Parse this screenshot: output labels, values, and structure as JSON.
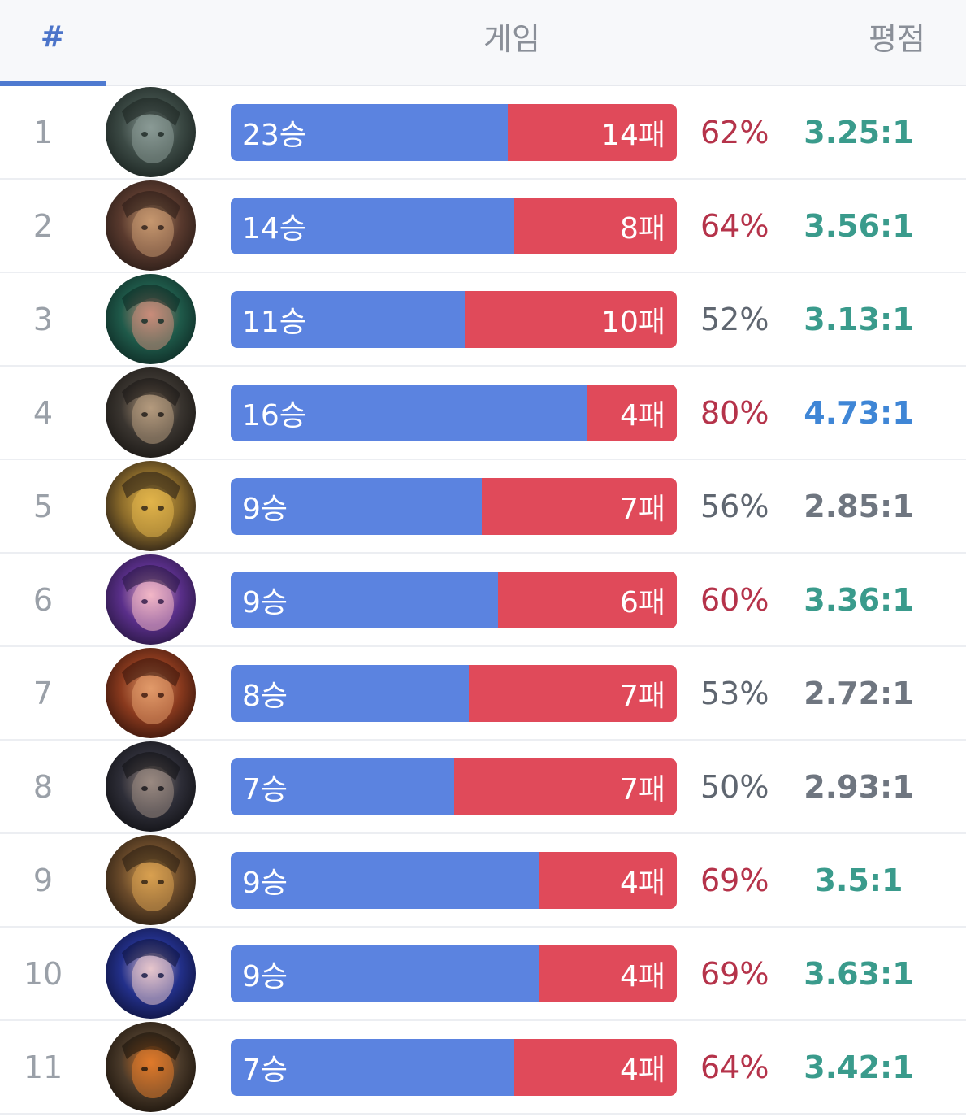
{
  "header": {
    "rank_label": "#",
    "game_label": "게임",
    "kda_label": "평점"
  },
  "colors": {
    "win_bar": "#5b83e0",
    "loss_bar": "#e04a5a",
    "winrate_high": "#b5334a",
    "winrate_normal": "#5f6670",
    "kda_green": "#3a9b8c",
    "kda_blue": "#3f86d6",
    "kda_gray": "#6f7680"
  },
  "rows": [
    {
      "rank": "1",
      "wins_label": "23승",
      "losses_label": "14패",
      "wins": 23,
      "losses": 14,
      "winrate": "62%",
      "winrate_tone": "high",
      "kda": "3.25:1",
      "kda_tone": "green",
      "avatar_icon": "champion-portrait-icon",
      "avatar_colors": [
        "#3c4a45",
        "#8a9a96",
        "#1c2522"
      ]
    },
    {
      "rank": "2",
      "wins_label": "14승",
      "losses_label": "8패",
      "wins": 14,
      "losses": 8,
      "winrate": "64%",
      "winrate_tone": "high",
      "kda": "3.56:1",
      "kda_tone": "green",
      "avatar_icon": "champion-portrait-icon",
      "avatar_colors": [
        "#5a3a2e",
        "#c6986f",
        "#2b1d18"
      ]
    },
    {
      "rank": "3",
      "wins_label": "11승",
      "losses_label": "10패",
      "wins": 11,
      "losses": 10,
      "winrate": "52%",
      "winrate_tone": "normal",
      "kda": "3.13:1",
      "kda_tone": "green",
      "avatar_icon": "champion-portrait-icon",
      "avatar_colors": [
        "#1f5a4a",
        "#c98c7a",
        "#0e2b25"
      ]
    },
    {
      "rank": "4",
      "wins_label": "16승",
      "losses_label": "4패",
      "wins": 16,
      "losses": 4,
      "winrate": "80%",
      "winrate_tone": "high",
      "kda": "4.73:1",
      "kda_tone": "blue",
      "avatar_icon": "champion-portrait-icon",
      "avatar_colors": [
        "#3a3530",
        "#b49a7e",
        "#1b1815"
      ]
    },
    {
      "rank": "5",
      "wins_label": "9승",
      "losses_label": "7패",
      "wins": 9,
      "losses": 7,
      "winrate": "56%",
      "winrate_tone": "normal",
      "kda": "2.85:1",
      "kda_tone": "gray",
      "avatar_icon": "champion-portrait-icon",
      "avatar_colors": [
        "#8a6a2a",
        "#e2b44a",
        "#2a2016"
      ]
    },
    {
      "rank": "6",
      "wins_label": "9승",
      "losses_label": "6패",
      "wins": 9,
      "losses": 6,
      "winrate": "60%",
      "winrate_tone": "high",
      "kda": "3.36:1",
      "kda_tone": "green",
      "avatar_icon": "champion-portrait-icon",
      "avatar_colors": [
        "#5a2f8a",
        "#f2b7c6",
        "#2a1744"
      ]
    },
    {
      "rank": "7",
      "wins_label": "8승",
      "losses_label": "7패",
      "wins": 8,
      "losses": 7,
      "winrate": "53%",
      "winrate_tone": "normal",
      "kda": "2.72:1",
      "kda_tone": "gray",
      "avatar_icon": "champion-portrait-icon",
      "avatar_colors": [
        "#8a3a1e",
        "#e29a6a",
        "#3a160c"
      ]
    },
    {
      "rank": "8",
      "wins_label": "7승",
      "losses_label": "7패",
      "wins": 7,
      "losses": 7,
      "winrate": "50%",
      "winrate_tone": "normal",
      "kda": "2.93:1",
      "kda_tone": "gray",
      "avatar_icon": "champion-portrait-icon",
      "avatar_colors": [
        "#2e2e38",
        "#9a8a82",
        "#121216"
      ]
    },
    {
      "rank": "9",
      "wins_label": "9승",
      "losses_label": "4패",
      "wins": 9,
      "losses": 4,
      "winrate": "69%",
      "winrate_tone": "high",
      "kda": "3.5:1",
      "kda_tone": "green",
      "avatar_icon": "champion-portrait-icon",
      "avatar_colors": [
        "#6a4a2a",
        "#d8a050",
        "#2a1e12"
      ]
    },
    {
      "rank": "10",
      "wins_label": "9승",
      "losses_label": "4패",
      "wins": 9,
      "losses": 4,
      "winrate": "69%",
      "winrate_tone": "high",
      "kda": "3.63:1",
      "kda_tone": "green",
      "avatar_icon": "champion-portrait-icon",
      "avatar_colors": [
        "#23308a",
        "#e8c6cc",
        "#0f1440"
      ]
    },
    {
      "rank": "11",
      "wins_label": "7승",
      "losses_label": "4패",
      "wins": 7,
      "losses": 4,
      "winrate": "64%",
      "winrate_tone": "high",
      "kda": "3.42:1",
      "kda_tone": "green",
      "avatar_icon": "champion-portrait-icon",
      "avatar_colors": [
        "#4a3a2a",
        "#e07a2a",
        "#1c140c"
      ]
    }
  ]
}
